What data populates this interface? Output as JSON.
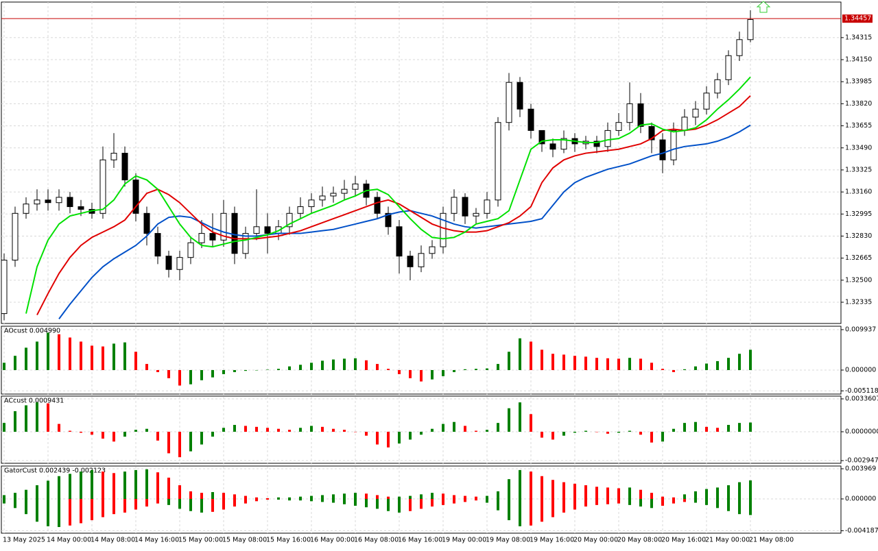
{
  "chart_data": [
    {
      "type": "candlestick",
      "categories": [
        "13 May 2025",
        null,
        null,
        null,
        "14 May 00:00",
        null,
        null,
        null,
        "14 May 08:00",
        null,
        null,
        null,
        "14 May 16:00",
        null,
        null,
        null,
        "15 May 00:00",
        null,
        null,
        null,
        "15 May 08:00",
        null,
        null,
        null,
        "15 May 16:00",
        null,
        null,
        null,
        "16 May 00:00",
        null,
        null,
        null,
        "16 May 08:00",
        null,
        null,
        null,
        "16 May 16:00",
        null,
        null,
        null,
        "19 May 00:00",
        null,
        null,
        null,
        "19 May 08:00",
        null,
        null,
        null,
        "19 May 16:00",
        null,
        null,
        null,
        "20 May 00:00",
        null,
        null,
        null,
        "20 May 08:00",
        null,
        null,
        null,
        "20 May 16:00",
        null,
        null,
        null,
        "21 May 00:00",
        null,
        null,
        null,
        "21 May 08:00"
      ],
      "open": [
        1.3225,
        1.3265,
        1.33,
        1.3307,
        1.331,
        1.3308,
        1.3312,
        1.3305,
        1.3303,
        1.33,
        1.334,
        1.3345,
        1.3325,
        1.33,
        1.3285,
        1.3268,
        1.3258,
        1.3267,
        1.3278,
        1.3285,
        1.328,
        1.33,
        1.327,
        1.3285,
        1.329,
        1.3285,
        1.329,
        1.33,
        1.3305,
        1.331,
        1.3313,
        1.3315,
        1.3318,
        1.3322,
        1.3312,
        1.33,
        1.329,
        1.3268,
        1.326,
        1.327,
        1.3275,
        1.33,
        1.3312,
        1.3298,
        1.33,
        1.331,
        1.3368,
        1.3398,
        1.3378,
        1.3362,
        1.3352,
        1.3348,
        1.3356,
        1.3352,
        1.3354,
        1.335,
        1.3362,
        1.3368,
        1.3382,
        1.3365,
        1.3355,
        1.334,
        1.3362,
        1.3372,
        1.3378,
        1.339,
        1.34,
        1.3418,
        1.343
      ],
      "high": [
        1.327,
        1.3305,
        1.3312,
        1.3318,
        1.3318,
        1.3318,
        1.3316,
        1.331,
        1.3308,
        1.335,
        1.336,
        1.335,
        1.333,
        1.3305,
        1.329,
        1.3272,
        1.3272,
        1.3282,
        1.3295,
        1.33,
        1.331,
        1.3305,
        1.329,
        1.3318,
        1.33,
        1.3295,
        1.3305,
        1.3312,
        1.3315,
        1.332,
        1.332,
        1.3325,
        1.3328,
        1.3325,
        1.3316,
        1.3305,
        1.3295,
        1.3272,
        1.3276,
        1.328,
        1.3305,
        1.3318,
        1.3315,
        1.3304,
        1.3316,
        1.3372,
        1.3405,
        1.3402,
        1.3382,
        1.3362,
        1.3356,
        1.3362,
        1.336,
        1.3358,
        1.3358,
        1.3368,
        1.3375,
        1.3398,
        1.339,
        1.3368,
        1.336,
        1.3368,
        1.3378,
        1.3384,
        1.3395,
        1.3405,
        1.3422,
        1.3436,
        1.3452
      ],
      "low": [
        1.322,
        1.326,
        1.3296,
        1.3302,
        1.3302,
        1.3302,
        1.33,
        1.3298,
        1.3296,
        1.3296,
        1.3334,
        1.332,
        1.3294,
        1.3276,
        1.3262,
        1.3252,
        1.325,
        1.3262,
        1.3274,
        1.3275,
        1.3275,
        1.3262,
        1.3266,
        1.328,
        1.327,
        1.328,
        1.3284,
        1.3296,
        1.33,
        1.3305,
        1.3308,
        1.331,
        1.3313,
        1.3306,
        1.3296,
        1.3284,
        1.3255,
        1.325,
        1.3256,
        1.3266,
        1.327,
        1.3294,
        1.3292,
        1.3292,
        1.3296,
        1.3305,
        1.3362,
        1.3372,
        1.3356,
        1.3346,
        1.3342,
        1.3345,
        1.3346,
        1.3348,
        1.3345,
        1.3346,
        1.3358,
        1.3362,
        1.336,
        1.3345,
        1.333,
        1.3336,
        1.3358,
        1.3366,
        1.3374,
        1.3386,
        1.3396,
        1.3414,
        1.3428
      ],
      "close": [
        1.3265,
        1.33,
        1.3307,
        1.331,
        1.3308,
        1.3312,
        1.3305,
        1.3303,
        1.33,
        1.334,
        1.3345,
        1.3325,
        1.33,
        1.3285,
        1.3268,
        1.3258,
        1.3267,
        1.3278,
        1.3285,
        1.328,
        1.33,
        1.327,
        1.3285,
        1.329,
        1.3285,
        1.329,
        1.33,
        1.3305,
        1.331,
        1.3313,
        1.3315,
        1.3318,
        1.3322,
        1.3312,
        1.33,
        1.329,
        1.3268,
        1.326,
        1.327,
        1.3275,
        1.33,
        1.3312,
        1.3298,
        1.33,
        1.331,
        1.3368,
        1.3398,
        1.3378,
        1.3362,
        1.3352,
        1.3348,
        1.3356,
        1.3352,
        1.3354,
        1.335,
        1.3362,
        1.3368,
        1.3382,
        1.3365,
        1.3355,
        1.334,
        1.3362,
        1.3372,
        1.3378,
        1.339,
        1.34,
        1.3418,
        1.343,
        1.3445
      ],
      "series": [
        {
          "color": "#0050c8",
          "values": [
            null,
            null,
            null,
            null,
            null,
            1.3221,
            1.3232,
            1.3242,
            1.3252,
            1.326,
            1.3266,
            1.3271,
            1.3276,
            1.3283,
            1.3292,
            1.3297,
            1.3298,
            1.3297,
            1.3293,
            1.3289,
            1.3286,
            1.3284,
            1.3283,
            1.3283,
            1.3284,
            1.3285,
            1.3285,
            1.3285,
            1.3286,
            1.3287,
            1.3288,
            1.329,
            1.3292,
            1.3294,
            1.3296,
            1.3299,
            1.3301,
            1.3302,
            1.33,
            1.3298,
            1.3295,
            1.3292,
            1.329,
            1.3289,
            1.329,
            1.3291,
            1.3292,
            1.3293,
            1.3294,
            1.3296,
            1.3306,
            1.3316,
            1.3323,
            1.3327,
            1.333,
            1.3333,
            1.3335,
            1.3337,
            1.334,
            1.3343,
            1.3345,
            1.3348,
            1.335,
            1.3351,
            1.3352,
            1.3354,
            1.3357,
            1.3361,
            1.3366
          ]
        },
        {
          "color": "#e00000",
          "values": [
            null,
            null,
            null,
            1.3224,
            1.324,
            1.3255,
            1.3267,
            1.3276,
            1.3282,
            1.3286,
            1.329,
            1.3295,
            1.3305,
            1.3315,
            1.3318,
            1.3314,
            1.3308,
            1.33,
            1.3292,
            1.3286,
            1.3283,
            1.3281,
            1.3281,
            1.3281,
            1.3282,
            1.3283,
            1.3285,
            1.3287,
            1.329,
            1.3293,
            1.3296,
            1.3299,
            1.3302,
            1.3305,
            1.3308,
            1.331,
            1.3307,
            1.3302,
            1.3297,
            1.3292,
            1.3289,
            1.3287,
            1.3286,
            1.3286,
            1.3287,
            1.329,
            1.3293,
            1.3298,
            1.3305,
            1.3323,
            1.3334,
            1.334,
            1.3343,
            1.3345,
            1.3346,
            1.3347,
            1.3348,
            1.335,
            1.3352,
            1.3356,
            1.3362,
            1.3363,
            1.3362,
            1.3363,
            1.3366,
            1.337,
            1.3375,
            1.338,
            1.3388
          ]
        },
        {
          "color": "#00e000",
          "values": [
            null,
            null,
            1.3225,
            1.326,
            1.328,
            1.3292,
            1.3298,
            1.33,
            1.3302,
            1.3303,
            1.331,
            1.3322,
            1.3328,
            1.3325,
            1.3318,
            1.3305,
            1.3292,
            1.3282,
            1.3276,
            1.3275,
            1.3277,
            1.3279,
            1.328,
            1.3282,
            1.3284,
            1.3287,
            1.3292,
            1.3296,
            1.33,
            1.3303,
            1.3306,
            1.331,
            1.3313,
            1.3317,
            1.3318,
            1.3314,
            1.3305,
            1.3296,
            1.3288,
            1.3282,
            1.3281,
            1.3282,
            1.3286,
            1.3292,
            1.3294,
            1.3296,
            1.3302,
            1.3325,
            1.3348,
            1.3354,
            1.3355,
            1.3355,
            1.3354,
            1.3353,
            1.3353,
            1.3355,
            1.3356,
            1.336,
            1.3366,
            1.3367,
            1.3363,
            1.3361,
            1.3362,
            1.3364,
            1.337,
            1.3378,
            1.3385,
            1.3393,
            1.3402
          ]
        }
      ],
      "current_price": 1.34457,
      "current_price_color": "#c80000",
      "up_color": "#ffffff",
      "down_color": "#000000",
      "ylim": [
        1.32176,
        1.34581
      ],
      "yticks": [
        1.32335,
        {
          "value": 1.325,
          "label": "1.32500"
        },
        1.32665,
        {
          "value": 1.3283,
          "label": "1.32830"
        },
        1.32995,
        {
          "value": 1.3316,
          "label": "1.33160"
        },
        1.33325,
        {
          "value": 1.3349,
          "label": "1.33490"
        },
        1.33655,
        {
          "value": 1.3382,
          "label": "1.33820"
        },
        1.33985,
        {
          "value": 1.3415,
          "label": "1.34150"
        },
        1.34315
      ],
      "grid": true
    },
    {
      "type": "bar",
      "title": "AOcust 0.004990",
      "values": [
        0.0018,
        0.0035,
        0.0055,
        0.007,
        0.0092,
        0.0088,
        0.008,
        0.007,
        0.006,
        0.0058,
        0.0065,
        0.0068,
        0.0045,
        0.0015,
        -0.0005,
        -0.002,
        -0.0038,
        -0.0035,
        -0.0025,
        -0.0018,
        -0.001,
        -0.0005,
        -0.0002,
        0,
        0.0001,
        0.0003,
        0.0009,
        0.0013,
        0.0018,
        0.0023,
        0.0026,
        0.0028,
        0.0029,
        0.0024,
        0.0015,
        0.0003,
        -0.001,
        -0.002,
        -0.0028,
        -0.0023,
        -0.0015,
        -0.0005,
        0.0002,
        0.0003,
        0.0004,
        0.0015,
        0.0045,
        0.0078,
        0.007,
        0.005,
        0.004,
        0.0038,
        0.0035,
        0.0033,
        0.003,
        0.0029,
        0.0028,
        0.003,
        0.0028,
        0.0018,
        0.0003,
        -0.0005,
        0.0002,
        0.0009,
        0.0016,
        0.0022,
        0.003,
        0.004,
        0.00499
      ],
      "up_color": "#008000",
      "down_color": "#ff0000",
      "ylim": [
        -0.0059,
        0.01078
      ],
      "yticks": [
        0.009937,
        {
          "value": 0,
          "label": "0.000000"
        },
        -0.005118
      ],
      "grid": true
    },
    {
      "type": "bar",
      "title": "ACcust 0.0009431",
      "values": [
        0.0009,
        0.0021,
        0.0027,
        0.003,
        0.0029,
        0.0008,
        0.0001,
        -0.0001,
        -0.0003,
        -0.0007,
        -0.001,
        -0.0005,
        0.0002,
        0.0003,
        -0.0009,
        -0.0022,
        -0.0026,
        -0.002,
        -0.0013,
        -0.0005,
        0.0004,
        0.0007,
        0.0006,
        0.0005,
        0.0004,
        0.0003,
        0.0002,
        0.0004,
        0.0006,
        0.0005,
        0.0003,
        0.0002,
        0,
        -0.0004,
        -0.0013,
        -0.0016,
        -0.0012,
        -0.0008,
        -0.0003,
        0.0003,
        0.0008,
        0.001,
        0.0006,
        0.0001,
        0.0002,
        0.0009,
        0.0024,
        0.003,
        0.0018,
        -0.0006,
        -0.0008,
        -0.0004,
        -0.0001,
        0.0001,
        0,
        -0.0002,
        -0.0001,
        0.0001,
        -0.0003,
        -0.0011,
        -0.001,
        0.0003,
        0.0009,
        0.001,
        0.0005,
        0.0004,
        0.0007,
        0.0009,
        0.0009431
      ],
      "up_color": "#008000",
      "down_color": "#ff0000",
      "ylim": [
        -0.00322,
        0.00364
      ],
      "yticks": [
        0.0033607,
        {
          "value": 0,
          "label": "0.0000000"
        },
        -0.0029477
      ],
      "grid": true
    },
    {
      "type": "bar",
      "title": "GatorCust 0.002439 -0.002123",
      "series": [
        {
          "values": [
            0.0005,
            0.0008,
            0.0012,
            0.0018,
            0.0024,
            0.003,
            0.0033,
            0.0036,
            0.0038,
            0.0036,
            0.0034,
            0.0036,
            0.0038,
            0.0039,
            0.0035,
            0.0028,
            0.0018,
            0.001,
            0.0008,
            0.0009,
            0.0008,
            0.0006,
            0.0004,
            0.0002,
            0.0001,
            0.0002,
            0.0002,
            0.0003,
            0.0004,
            0.0005,
            0.0006,
            0.0007,
            0.0008,
            0.0007,
            0.0005,
            0.0003,
            0.0003,
            0.0004,
            0.0006,
            0.0008,
            0.0007,
            0.0005,
            0.0004,
            0.0003,
            0.0004,
            0.001,
            0.0026,
            0.0038,
            0.0036,
            0.003,
            0.0025,
            0.0022,
            0.002,
            0.0018,
            0.0016,
            0.0015,
            0.0014,
            0.0015,
            0.0012,
            0.0008,
            0.0003,
            0.0002,
            0.0006,
            0.001,
            0.0013,
            0.0015,
            0.0018,
            0.0022,
            0.002439
          ]
        },
        {
          "values": [
            -0.0006,
            -0.0012,
            -0.002,
            -0.003,
            -0.0036,
            -0.0037,
            -0.0035,
            -0.0032,
            -0.0028,
            -0.0024,
            -0.002,
            -0.0018,
            -0.0014,
            -0.001,
            -0.0006,
            -0.0008,
            -0.0013,
            -0.0016,
            -0.0018,
            -0.0017,
            -0.0014,
            -0.001,
            -0.0006,
            -0.0003,
            -0.0001,
            -0.0001,
            -0.0002,
            -0.0002,
            -0.0003,
            -0.0004,
            -0.0005,
            -0.0007,
            -0.0009,
            -0.0011,
            -0.0013,
            -0.0016,
            -0.0018,
            -0.0016,
            -0.0013,
            -0.001,
            -0.0008,
            -0.0006,
            -0.0004,
            -0.0002,
            -0.0005,
            -0.0015,
            -0.0028,
            -0.0036,
            -0.0035,
            -0.003,
            -0.0024,
            -0.0018,
            -0.0014,
            -0.001,
            -0.0008,
            -0.0007,
            -0.0006,
            -0.0008,
            -0.001,
            -0.0012,
            -0.0009,
            -0.0006,
            -0.0004,
            -0.0005,
            -0.0008,
            -0.0012,
            -0.0016,
            -0.002,
            -0.002123
          ]
        }
      ],
      "up_color": "#008000",
      "down_color": "#ff0000",
      "ylim": [
        -0.00451,
        0.00433
      ],
      "yticks": [
        0.003969,
        {
          "value": 0,
          "label": "0.000000"
        },
        -0.004187
      ],
      "grid": true
    }
  ]
}
